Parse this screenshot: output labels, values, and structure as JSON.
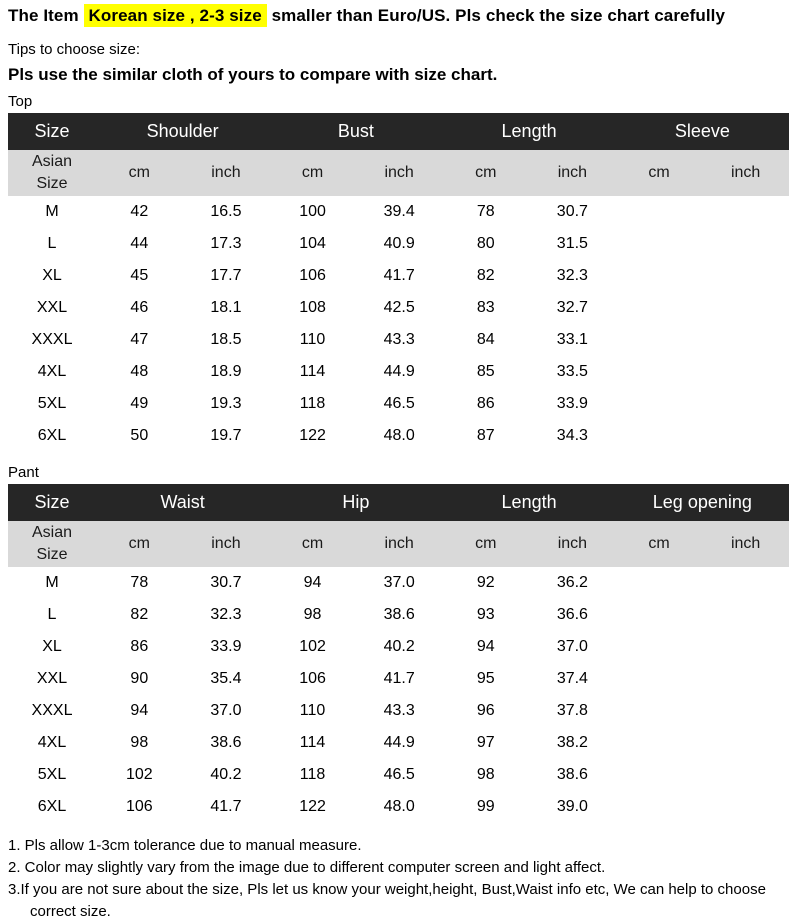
{
  "page": {
    "title_prefix": "The Item",
    "title_highlight": "Korean size , 2-3 size",
    "title_suffix": "smaller than Euro/US. Pls check the size chart carefully",
    "tips_heading": "Tips to choose size:",
    "tips_instruction": "Pls use the similar cloth of yours to compare with size chart."
  },
  "colors": {
    "highlight": "#ffff00",
    "table_header_bg": "#262626",
    "table_header_text": "#ffffff",
    "table_subheader_bg": "#d9d9d9"
  },
  "tables": {
    "top": {
      "section_label": "Top",
      "size_header": "Size",
      "row_header": "Asian\nSize",
      "unit_cm": "cm",
      "unit_inch": "inch",
      "groups": [
        "Shoulder",
        "Bust",
        "Length",
        "Sleeve"
      ],
      "rows": [
        {
          "size": "M",
          "values": [
            "42",
            "16.5",
            "100",
            "39.4",
            "78",
            "30.7",
            "",
            ""
          ]
        },
        {
          "size": "L",
          "values": [
            "44",
            "17.3",
            "104",
            "40.9",
            "80",
            "31.5",
            "",
            ""
          ]
        },
        {
          "size": "XL",
          "values": [
            "45",
            "17.7",
            "106",
            "41.7",
            "82",
            "32.3",
            "",
            ""
          ]
        },
        {
          "size": "XXL",
          "values": [
            "46",
            "18.1",
            "108",
            "42.5",
            "83",
            "32.7",
            "",
            ""
          ]
        },
        {
          "size": "XXXL",
          "values": [
            "47",
            "18.5",
            "110",
            "43.3",
            "84",
            "33.1",
            "",
            ""
          ]
        },
        {
          "size": "4XL",
          "values": [
            "48",
            "18.9",
            "114",
            "44.9",
            "85",
            "33.5",
            "",
            ""
          ]
        },
        {
          "size": "5XL",
          "values": [
            "49",
            "19.3",
            "118",
            "46.5",
            "86",
            "33.9",
            "",
            ""
          ]
        },
        {
          "size": "6XL",
          "values": [
            "50",
            "19.7",
            "122",
            "48.0",
            "87",
            "34.3",
            "",
            ""
          ]
        }
      ]
    },
    "pant": {
      "section_label": "Pant",
      "size_header": "Size",
      "row_header": "Asian\nSize",
      "unit_cm": "cm",
      "unit_inch": "inch",
      "groups": [
        "Waist",
        "Hip",
        "Length",
        "Leg opening"
      ],
      "rows": [
        {
          "size": "M",
          "values": [
            "78",
            "30.7",
            "94",
            "37.0",
            "92",
            "36.2",
            "",
            ""
          ]
        },
        {
          "size": "L",
          "values": [
            "82",
            "32.3",
            "98",
            "38.6",
            "93",
            "36.6",
            "",
            ""
          ]
        },
        {
          "size": "XL",
          "values": [
            "86",
            "33.9",
            "102",
            "40.2",
            "94",
            "37.0",
            "",
            ""
          ]
        },
        {
          "size": "XXL",
          "values": [
            "90",
            "35.4",
            "106",
            "41.7",
            "95",
            "37.4",
            "",
            ""
          ]
        },
        {
          "size": "XXXL",
          "values": [
            "94",
            "37.0",
            "110",
            "43.3",
            "96",
            "37.8",
            "",
            ""
          ]
        },
        {
          "size": "4XL",
          "values": [
            "98",
            "38.6",
            "114",
            "44.9",
            "97",
            "38.2",
            "",
            ""
          ]
        },
        {
          "size": "5XL",
          "values": [
            "102",
            "40.2",
            "118",
            "46.5",
            "98",
            "38.6",
            "",
            ""
          ]
        },
        {
          "size": "6XL",
          "values": [
            "106",
            "41.7",
            "122",
            "48.0",
            "99",
            "39.0",
            "",
            ""
          ]
        }
      ]
    }
  },
  "notes": [
    "1. Pls allow 1-3cm tolerance due to manual measure.",
    "2. Color may slightly vary from the image due to different computer screen and light affect.",
    "3.If you are not sure about the size, Pls let us know your weight,height, Bust,Waist info etc, We can help to choose correct size."
  ]
}
